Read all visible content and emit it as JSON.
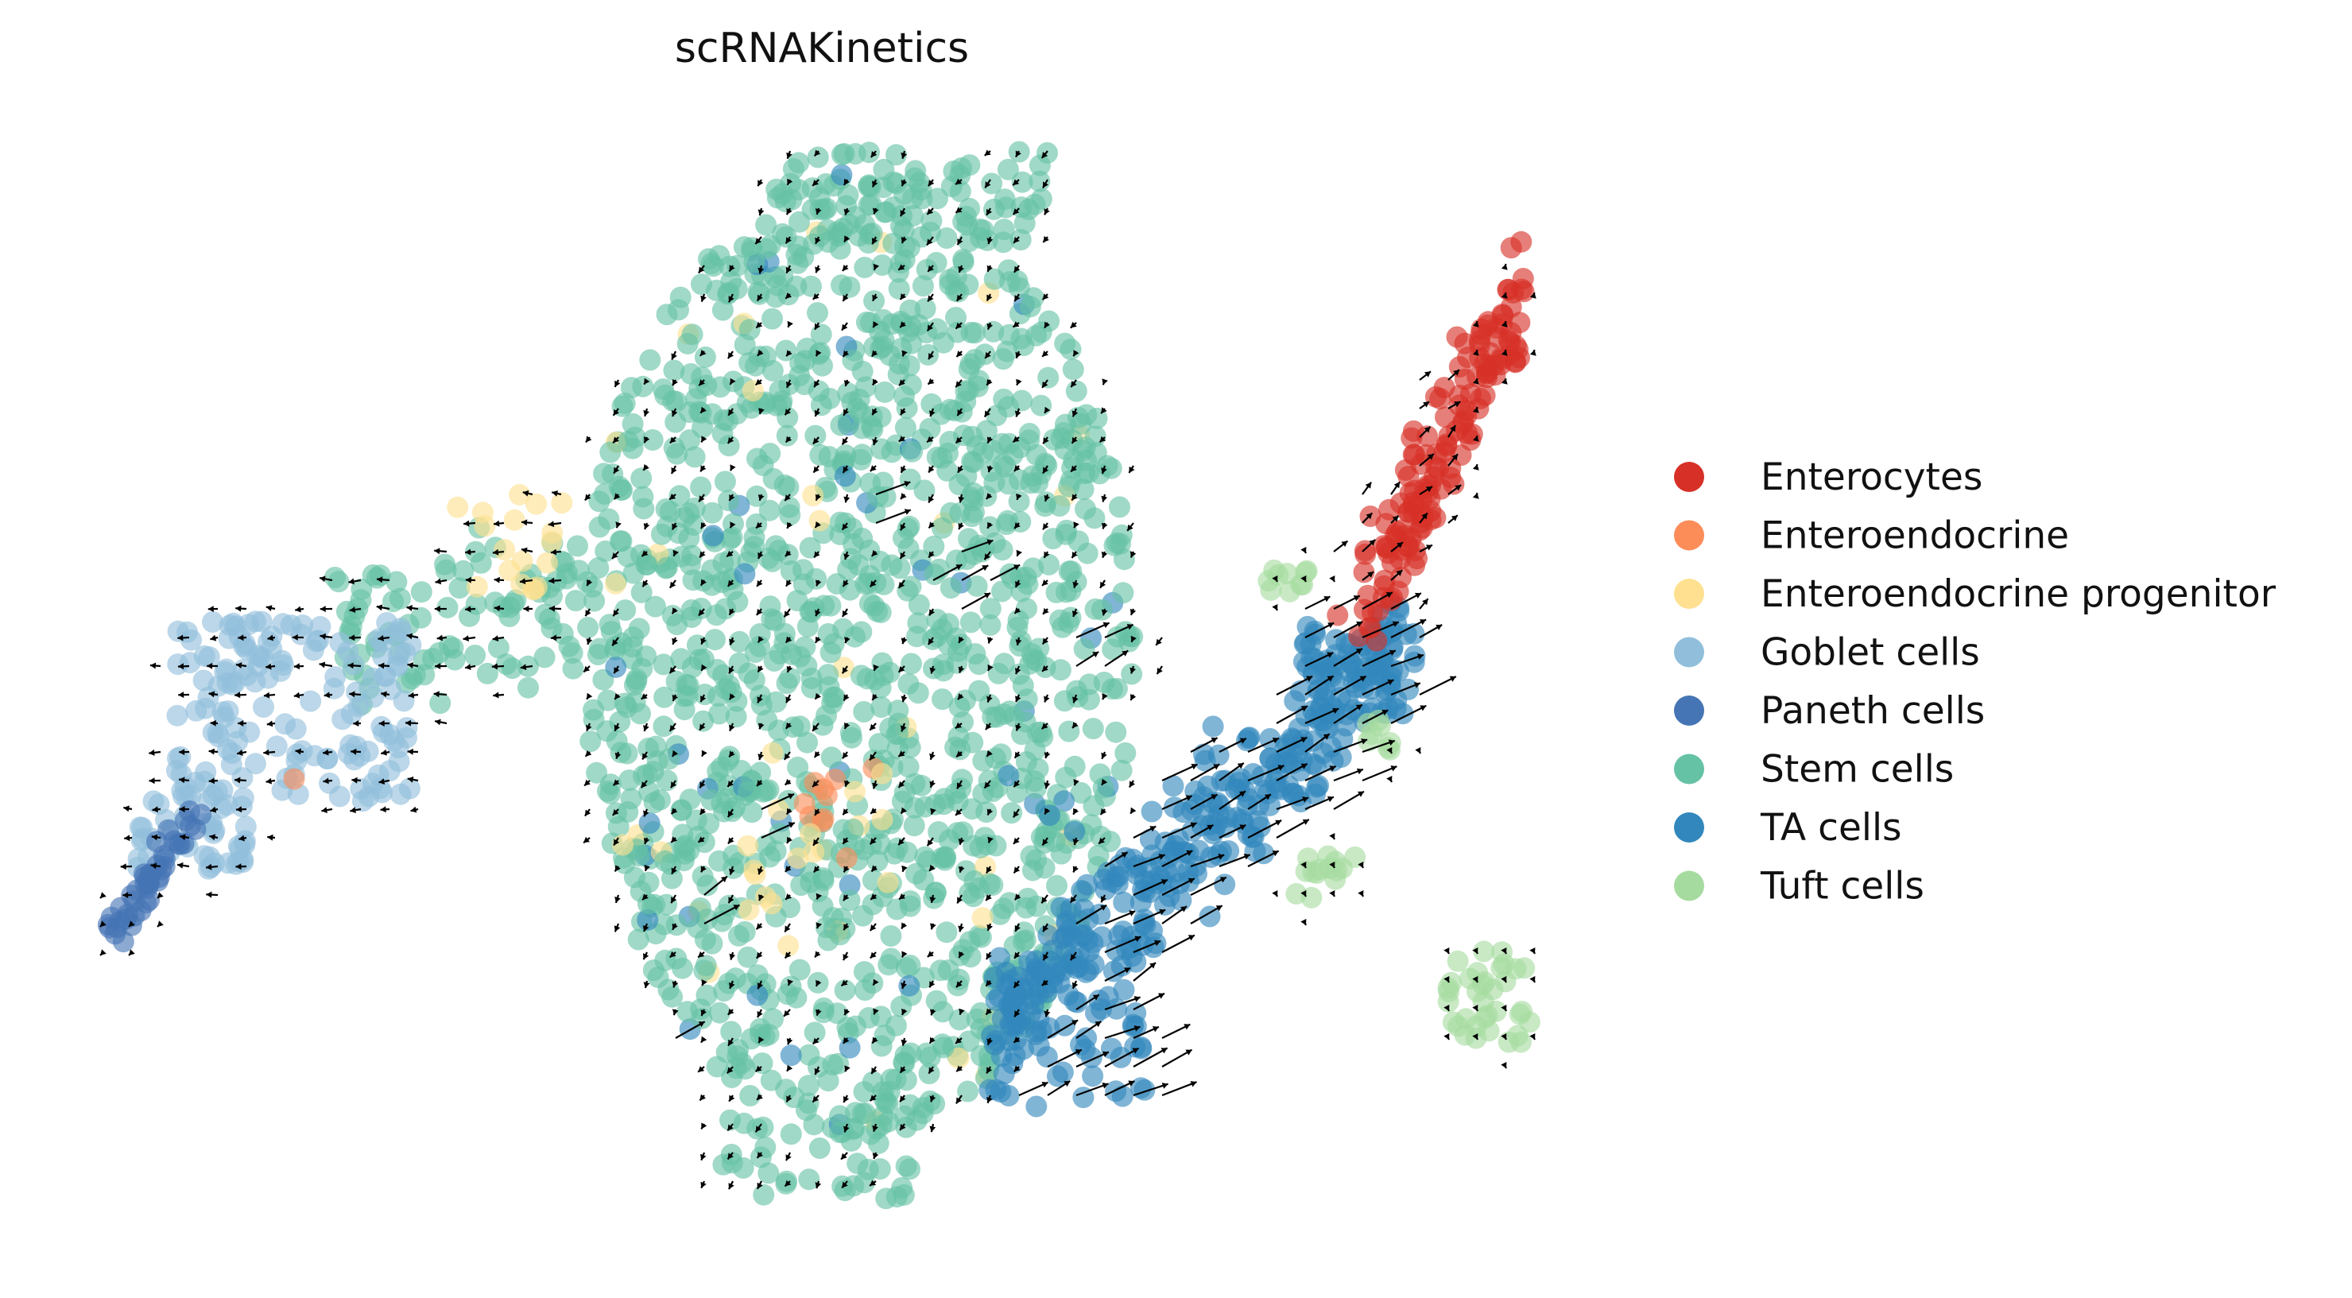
{
  "chart_data": {
    "type": "scatter",
    "title": "scRNAKinetics",
    "xlabel": "",
    "ylabel": "",
    "axes_visible": false,
    "grid": false,
    "legend_position": "right",
    "series": [
      {
        "name": "Enterocytes",
        "color": "#d73027"
      },
      {
        "name": "Enteroendocrine",
        "color": "#fc8d59"
      },
      {
        "name": "Enteroendocrine progenitor",
        "color": "#fee090"
      },
      {
        "name": "Goblet cells",
        "color": "#91bfdb"
      },
      {
        "name": "Paneth cells",
        "color": "#4575b4"
      },
      {
        "name": "Stem cells",
        "color": "#66c2a5"
      },
      {
        "name": "TA cells",
        "color": "#3288bd"
      },
      {
        "name": "Tuft cells",
        "color": "#a6dba0"
      }
    ]
  }
}
